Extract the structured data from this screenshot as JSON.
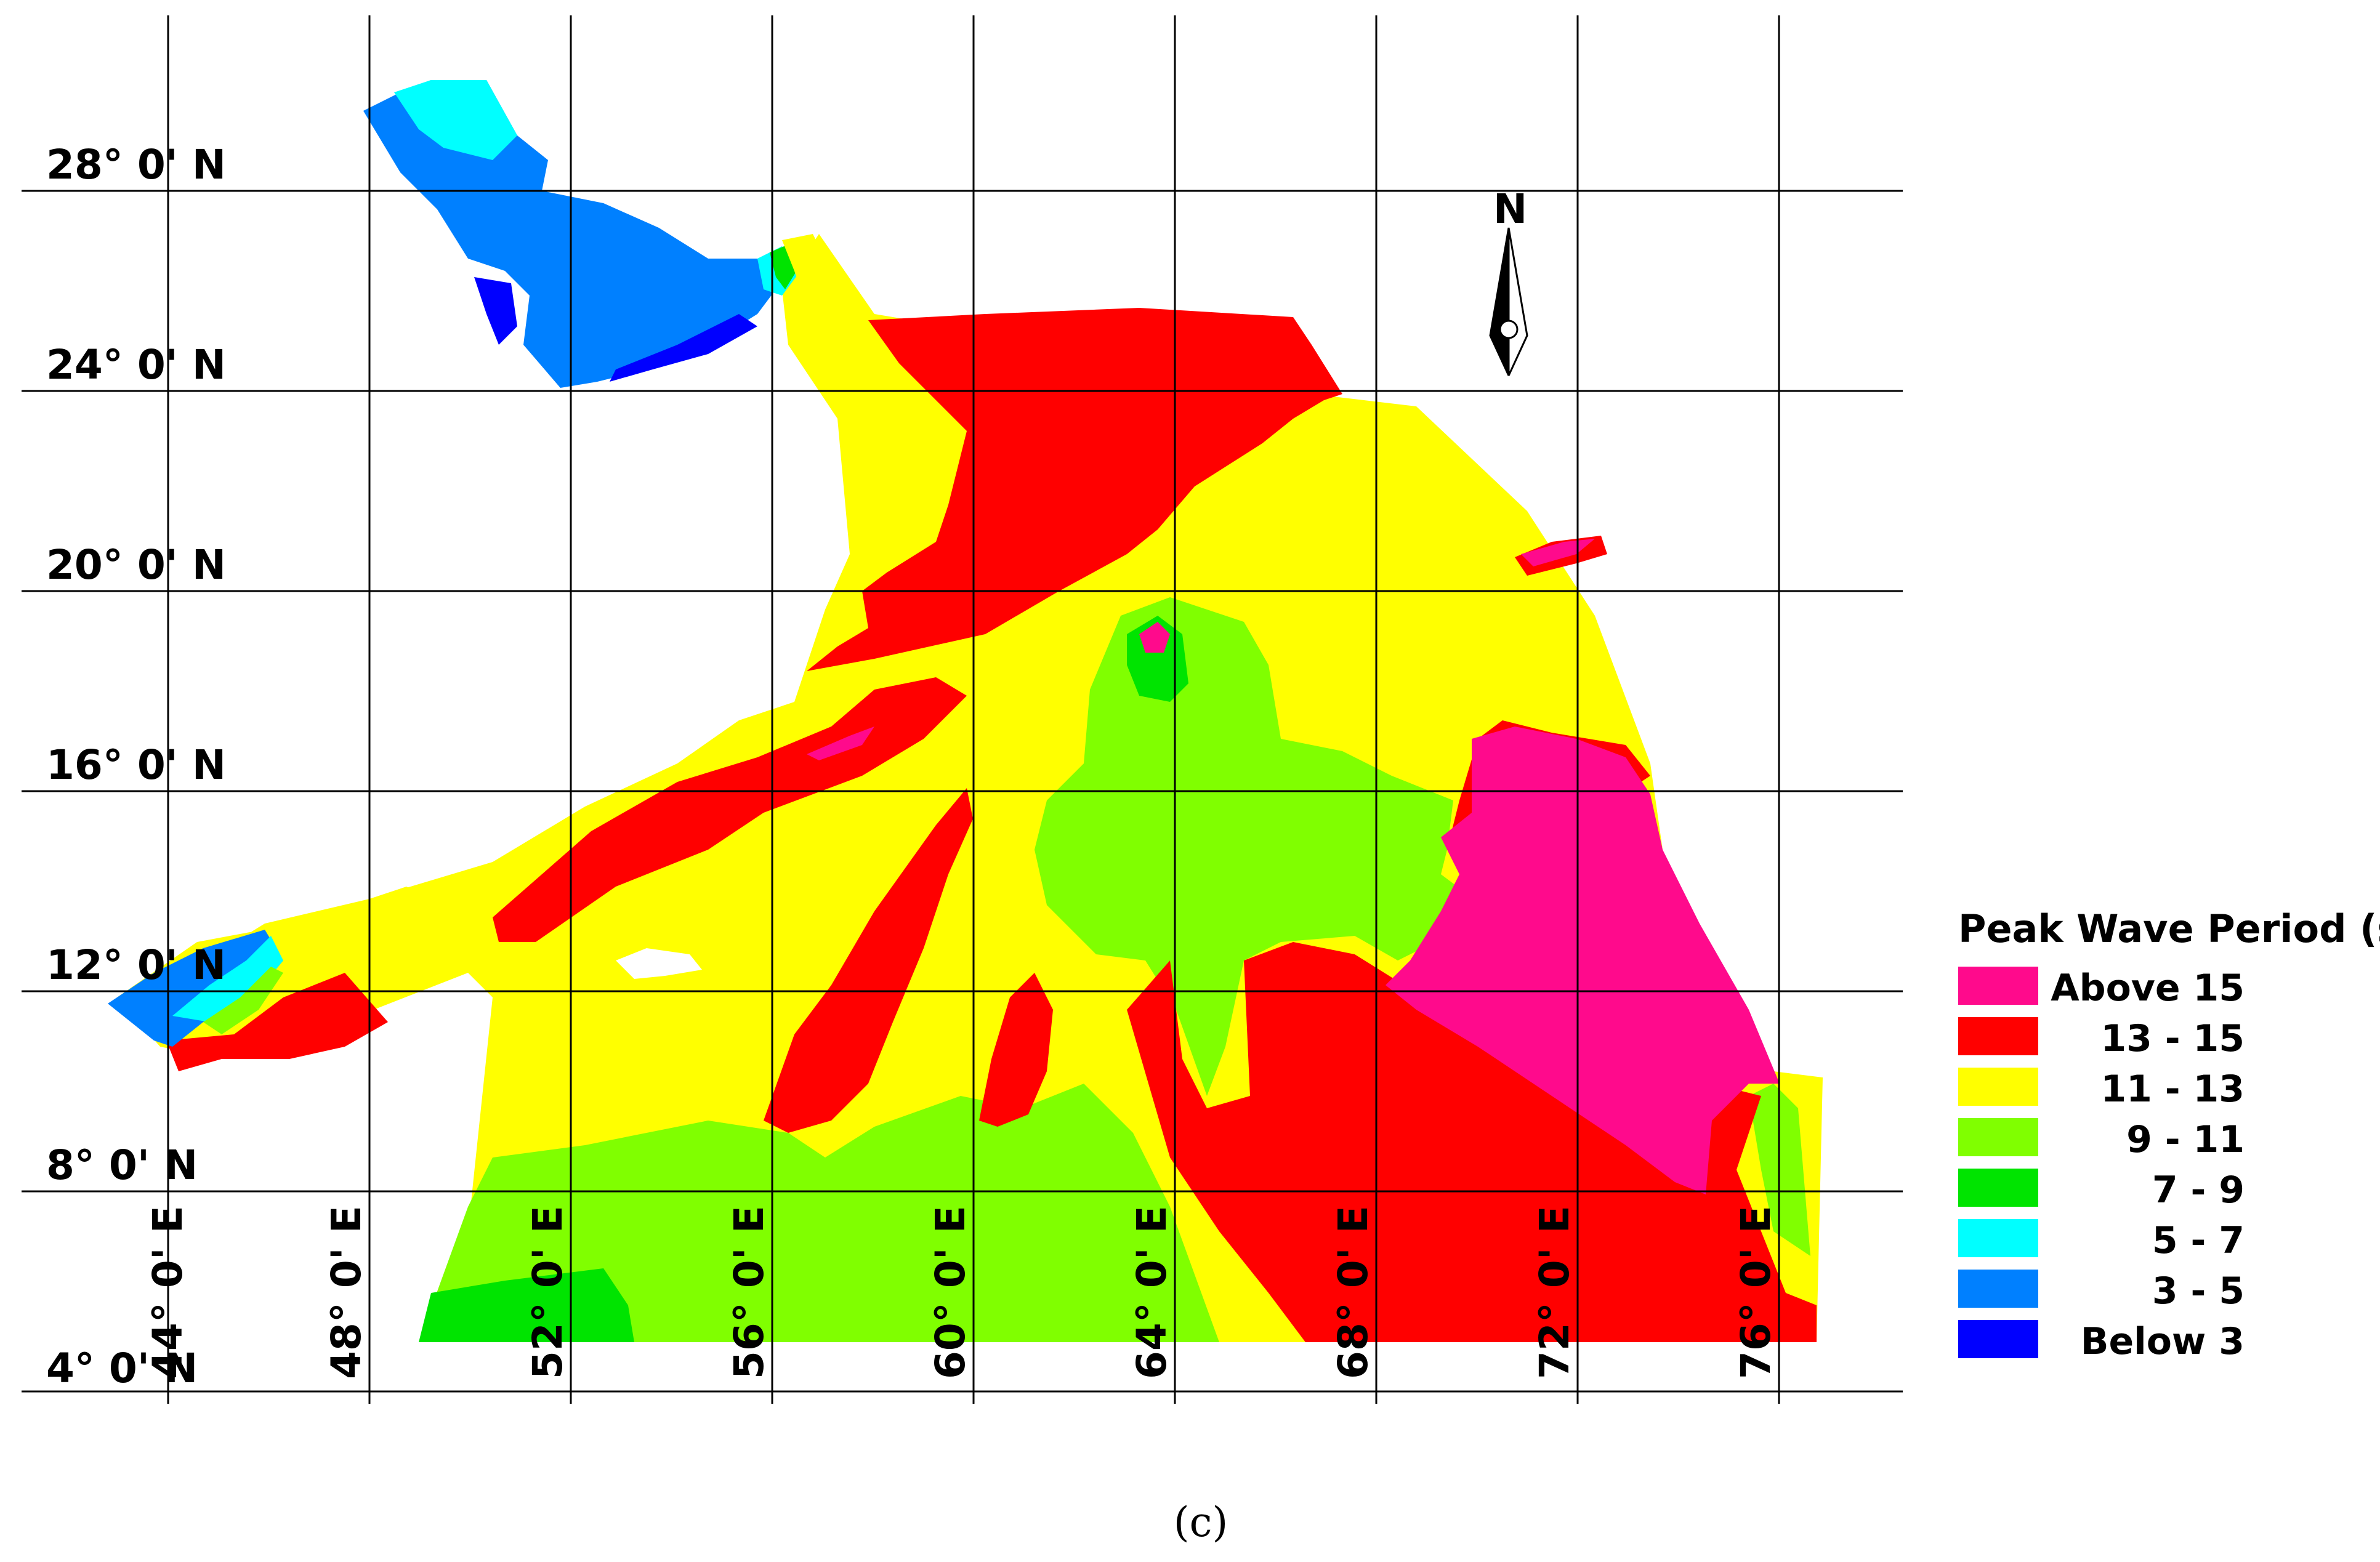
{
  "map": {
    "lat_labels": [
      "28° 0' N",
      "24° 0' N",
      "20° 0' N",
      "16° 0' N",
      "12° 0' N",
      "8° 0' N",
      "4° 0' N"
    ],
    "lon_labels": [
      "44° 0' E",
      "48° 0' E",
      "52° 0' E",
      "56° 0' E",
      "60° 0' E",
      "64° 0' E",
      "68° 0' E",
      "72° 0' E",
      "76° 0' E"
    ],
    "north_arrow": {
      "label": "N",
      "icon": "north-arrow-icon"
    }
  },
  "legend": {
    "title": "Peak Wave Period (s)",
    "items": [
      {
        "label": "Above 15",
        "color": "#ff0a8c"
      },
      {
        "label": "13 - 15",
        "color": "#ff0000"
      },
      {
        "label": "11 - 13",
        "color": "#ffff00"
      },
      {
        "label": "9 - 11",
        "color": "#80ff00"
      },
      {
        "label": "7 - 9",
        "color": "#00e400"
      },
      {
        "label": "5 - 7",
        "color": "#00ffff"
      },
      {
        "label": "3 - 5",
        "color": "#0080ff"
      },
      {
        "label": "Below 3",
        "color": "#0000ff"
      }
    ]
  },
  "caption": "(c)"
}
